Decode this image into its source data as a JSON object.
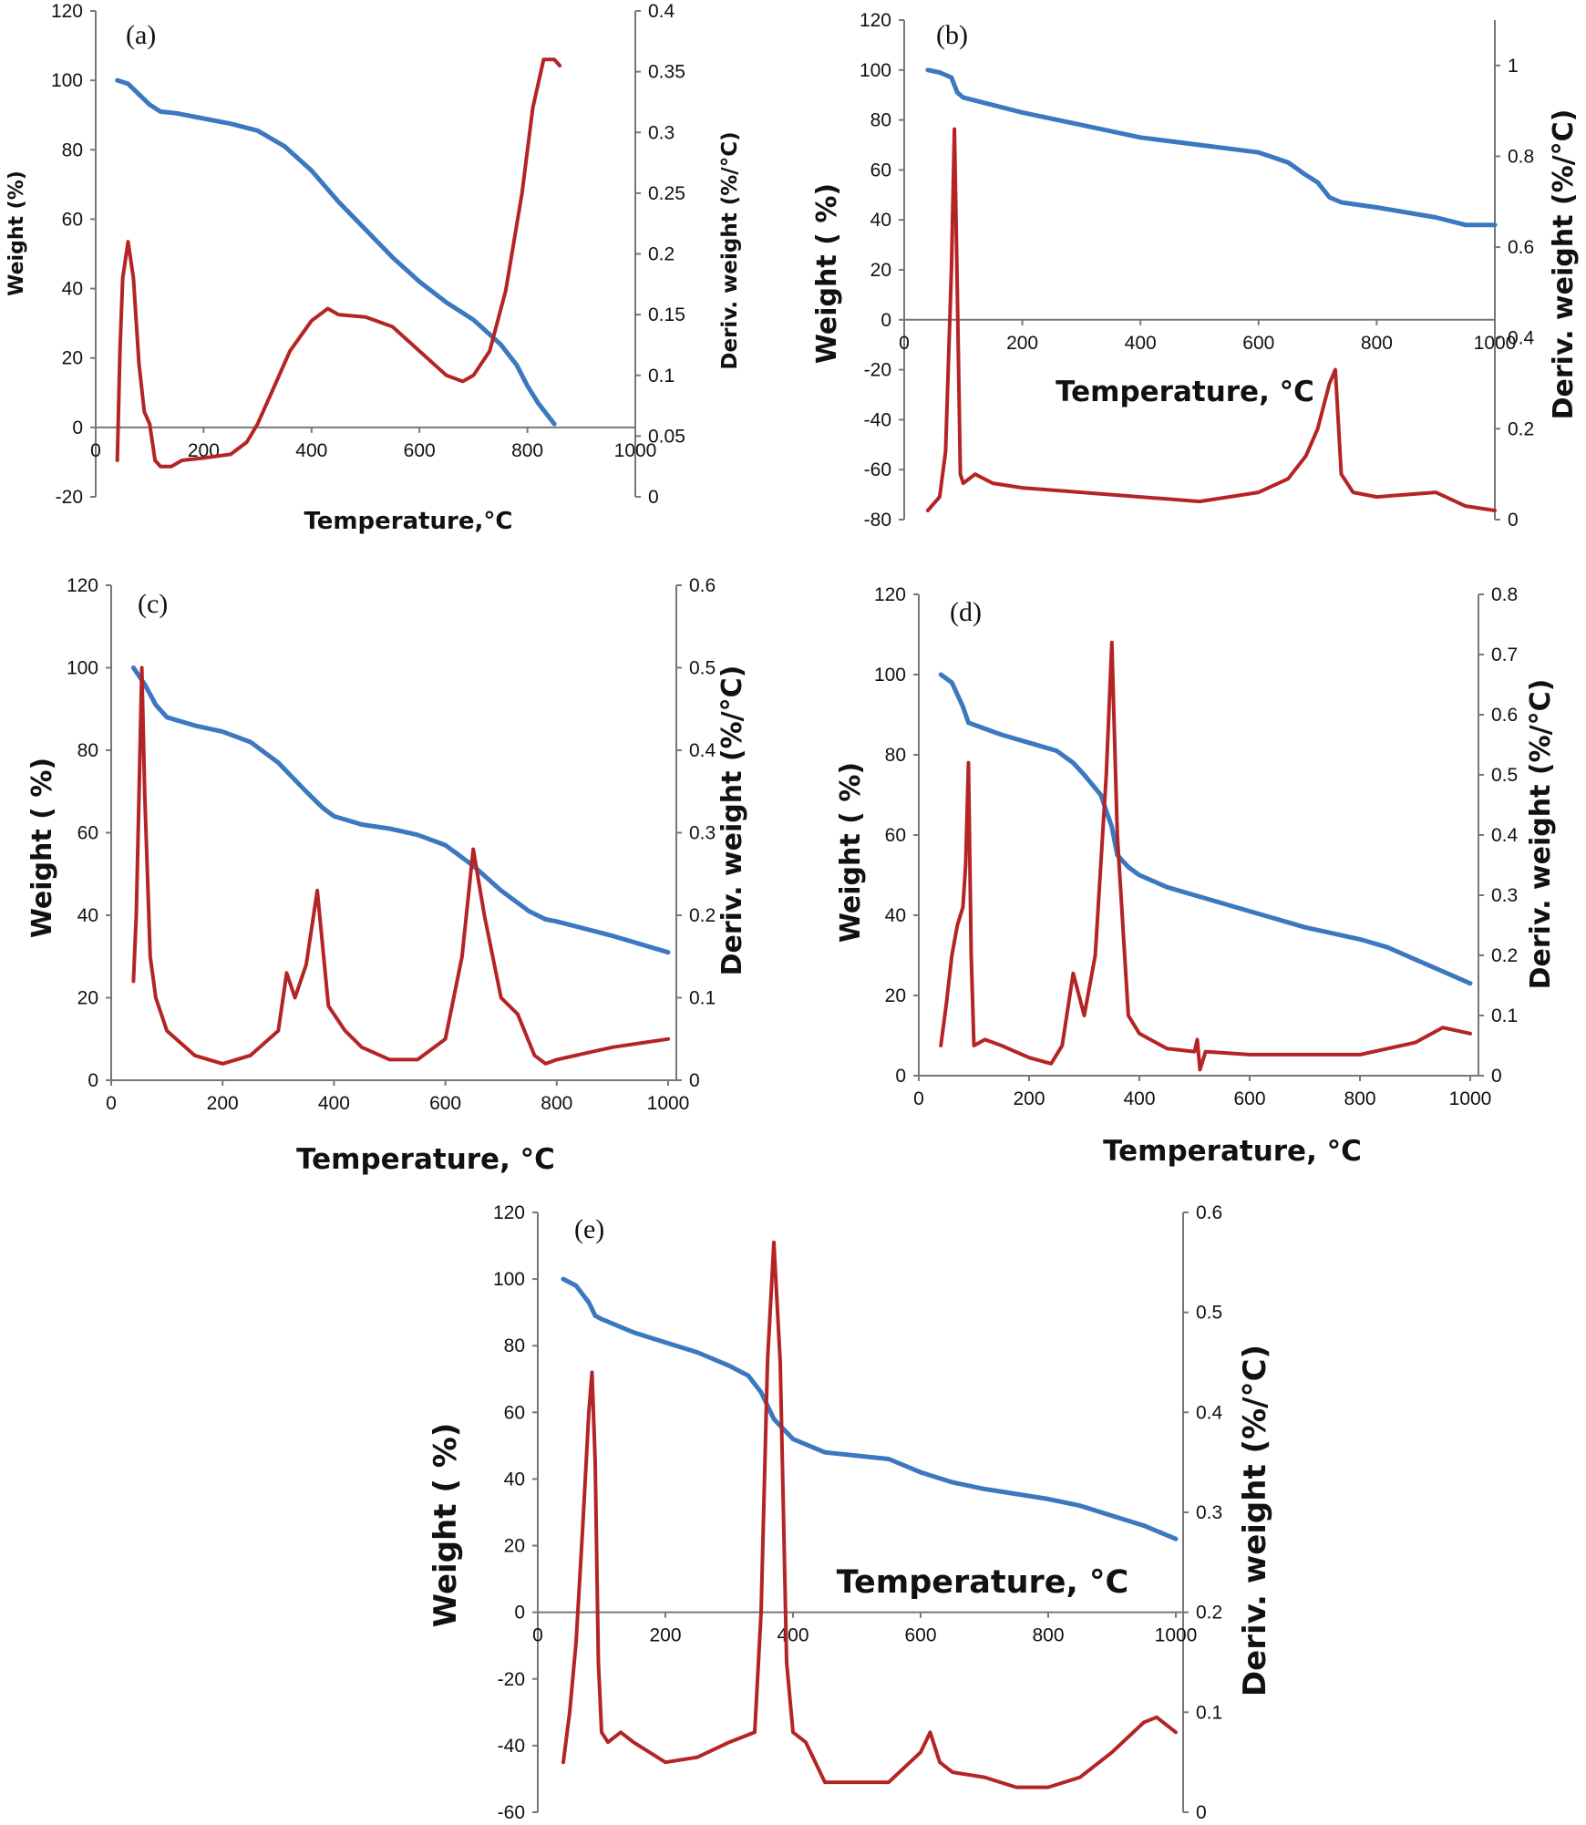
{
  "colors": {
    "weight": "#3b78c0",
    "deriv": "#b52424",
    "axis": "#777777"
  },
  "chart_data": [
    {
      "type": "line",
      "panel_label": "(a)",
      "xlabel": "Temperature,°C",
      "ylabel": "Weight (%)",
      "y2label": "Deriv. weight (%/°C)",
      "xlim": [
        0,
        1000
      ],
      "ylim": [
        -20,
        120
      ],
      "y2lim": [
        0,
        0.4
      ],
      "xticks": [
        "0",
        "200",
        "400",
        "600",
        "800",
        "1000"
      ],
      "yticks": [
        "-20",
        "0",
        "20",
        "40",
        "60",
        "80",
        "100",
        "120"
      ],
      "y2ticks": [
        "0",
        "0.05",
        "0.1",
        "0.15",
        "0.2",
        "0.25",
        "0.3",
        "0.35",
        "0.4"
      ],
      "series": [
        {
          "axis": "left",
          "x": [
            40,
            60,
            80,
            100,
            120,
            150,
            200,
            250,
            300,
            350,
            400,
            450,
            500,
            550,
            600,
            650,
            700,
            750,
            780,
            800,
            820,
            850
          ],
          "y": [
            100,
            99,
            96,
            93,
            91,
            90.5,
            89,
            87.5,
            85.5,
            81,
            74,
            65,
            57,
            49,
            42,
            36,
            31,
            24,
            18,
            12,
            7,
            1
          ]
        },
        {
          "axis": "right",
          "x": [
            40,
            45,
            50,
            60,
            70,
            80,
            90,
            100,
            110,
            120,
            140,
            160,
            200,
            250,
            280,
            300,
            330,
            360,
            400,
            430,
            450,
            500,
            550,
            600,
            650,
            680,
            700,
            730,
            760,
            790,
            810,
            830,
            850,
            860
          ],
          "y": [
            0.03,
            0.12,
            0.18,
            0.21,
            0.18,
            0.11,
            0.07,
            0.06,
            0.03,
            0.025,
            0.025,
            0.03,
            0.032,
            0.035,
            0.045,
            0.06,
            0.09,
            0.12,
            0.145,
            0.155,
            0.15,
            0.148,
            0.14,
            0.12,
            0.1,
            0.095,
            0.1,
            0.12,
            0.17,
            0.25,
            0.32,
            0.36,
            0.36,
            0.355
          ]
        }
      ]
    },
    {
      "type": "line",
      "panel_label": "(b)",
      "xlabel": "Temperature, °C",
      "ylabel": "Weight ( %)",
      "y2label": "Deriv. weight (%/°C)",
      "xlim": [
        0,
        1000
      ],
      "ylim": [
        -80,
        120
      ],
      "y2lim": [
        0,
        1.1
      ],
      "xticks": [
        "0",
        "200",
        "400",
        "600",
        "800",
        "1000"
      ],
      "yticks": [
        "-80",
        "-60",
        "-40",
        "-20",
        "0",
        "20",
        "40",
        "60",
        "80",
        "100",
        "120"
      ],
      "y2ticks": [
        "0",
        "0.2",
        "0.4",
        "0.6",
        "0.8",
        "1"
      ],
      "series": [
        {
          "axis": "left",
          "x": [
            40,
            60,
            80,
            90,
            100,
            150,
            200,
            300,
            400,
            500,
            600,
            650,
            680,
            700,
            720,
            740,
            800,
            900,
            950,
            1000
          ],
          "y": [
            100,
            99,
            97,
            91,
            89,
            86,
            83,
            78,
            73,
            70,
            67,
            63,
            58,
            55,
            49,
            47,
            45,
            41,
            38,
            38
          ]
        },
        {
          "axis": "right",
          "x": [
            40,
            60,
            70,
            80,
            85,
            90,
            95,
            100,
            120,
            150,
            200,
            300,
            400,
            500,
            600,
            650,
            680,
            700,
            720,
            730,
            740,
            760,
            800,
            900,
            950,
            1000
          ],
          "y": [
            0.02,
            0.05,
            0.15,
            0.55,
            0.86,
            0.5,
            0.1,
            0.08,
            0.1,
            0.08,
            0.07,
            0.06,
            0.05,
            0.04,
            0.06,
            0.09,
            0.14,
            0.2,
            0.3,
            0.33,
            0.1,
            0.06,
            0.05,
            0.06,
            0.03,
            0.02
          ]
        }
      ]
    },
    {
      "type": "line",
      "panel_label": "(c)",
      "xlabel": "Temperature, °C",
      "ylabel": "Weight ( %)",
      "y2label": "Deriv. weight (%/°C)",
      "xlim": [
        0,
        1000
      ],
      "ylim": [
        0,
        120
      ],
      "y2lim": [
        0,
        0.6
      ],
      "xticks": [
        "0",
        "200",
        "400",
        "600",
        "800",
        "1000"
      ],
      "yticks": [
        "0",
        "20",
        "40",
        "60",
        "80",
        "100",
        "120"
      ],
      "y2ticks": [
        "0",
        "0.1",
        "0.2",
        "0.3",
        "0.4",
        "0.5",
        "0.6"
      ],
      "series": [
        {
          "axis": "left",
          "x": [
            40,
            60,
            80,
            100,
            150,
            200,
            250,
            300,
            350,
            380,
            400,
            450,
            500,
            550,
            600,
            650,
            700,
            750,
            780,
            800,
            900,
            1000
          ],
          "y": [
            100,
            96,
            91,
            88,
            86,
            84.5,
            82,
            77,
            70,
            66,
            64,
            62,
            61,
            59.5,
            57,
            52,
            46,
            41,
            39,
            38.5,
            35,
            31
          ]
        },
        {
          "axis": "right",
          "x": [
            40,
            45,
            50,
            55,
            60,
            70,
            80,
            100,
            150,
            200,
            250,
            300,
            315,
            330,
            350,
            370,
            390,
            420,
            450,
            500,
            550,
            600,
            630,
            650,
            670,
            700,
            730,
            760,
            780,
            800,
            900,
            1000
          ],
          "y": [
            0.12,
            0.2,
            0.35,
            0.5,
            0.35,
            0.15,
            0.1,
            0.06,
            0.03,
            0.02,
            0.03,
            0.06,
            0.13,
            0.1,
            0.14,
            0.23,
            0.09,
            0.06,
            0.04,
            0.025,
            0.025,
            0.05,
            0.15,
            0.28,
            0.2,
            0.1,
            0.08,
            0.03,
            0.02,
            0.025,
            0.04,
            0.05
          ]
        }
      ]
    },
    {
      "type": "line",
      "panel_label": "(d)",
      "xlabel": "Temperature, °C",
      "ylabel": "Weight ( %)",
      "y2label": "Deriv. weight (%/°C)",
      "xlim": [
        0,
        1000
      ],
      "ylim": [
        0,
        120
      ],
      "y2lim": [
        0,
        0.8
      ],
      "xticks": [
        "0",
        "200",
        "400",
        "600",
        "800",
        "1000"
      ],
      "yticks": [
        "0",
        "20",
        "40",
        "60",
        "80",
        "100",
        "120"
      ],
      "y2ticks": [
        "0",
        "0.1",
        "0.2",
        "0.3",
        "0.4",
        "0.5",
        "0.6",
        "0.7",
        "0.8"
      ],
      "series": [
        {
          "axis": "left",
          "x": [
            40,
            60,
            80,
            90,
            100,
            150,
            200,
            250,
            280,
            300,
            330,
            350,
            360,
            380,
            400,
            450,
            500,
            600,
            700,
            800,
            850,
            900,
            950,
            1000
          ],
          "y": [
            100,
            98,
            92,
            88,
            87.5,
            85,
            83,
            81,
            78,
            75,
            70,
            62,
            55,
            52,
            50,
            47,
            45,
            41,
            37,
            34,
            32,
            29,
            26,
            23
          ]
        },
        {
          "axis": "right",
          "x": [
            40,
            50,
            60,
            70,
            80,
            85,
            90,
            95,
            100,
            120,
            150,
            200,
            240,
            260,
            280,
            300,
            320,
            340,
            350,
            360,
            380,
            400,
            450,
            500,
            505,
            510,
            520,
            600,
            700,
            800,
            900,
            950,
            1000
          ],
          "y": [
            0.05,
            0.12,
            0.2,
            0.25,
            0.28,
            0.35,
            0.52,
            0.2,
            0.05,
            0.06,
            0.05,
            0.03,
            0.02,
            0.05,
            0.17,
            0.1,
            0.2,
            0.5,
            0.72,
            0.4,
            0.1,
            0.07,
            0.045,
            0.04,
            0.06,
            0.01,
            0.04,
            0.035,
            0.035,
            0.035,
            0.055,
            0.08,
            0.07
          ]
        }
      ]
    },
    {
      "type": "line",
      "panel_label": "(e)",
      "xlabel": "Temperature, °C",
      "ylabel": "Weight ( %)",
      "y2label": "Deriv. weight (%/°C)",
      "xlim": [
        0,
        1000
      ],
      "ylim": [
        -60,
        120
      ],
      "y2lim": [
        0,
        0.6
      ],
      "xticks": [
        "0",
        "200",
        "400",
        "600",
        "800",
        "1000"
      ],
      "yticks": [
        "-60",
        "-40",
        "-20",
        "0",
        "20",
        "40",
        "60",
        "80",
        "100",
        "120"
      ],
      "y2ticks": [
        "0",
        "0.1",
        "0.2",
        "0.3",
        "0.4",
        "0.5",
        "0.6"
      ],
      "series": [
        {
          "axis": "left",
          "x": [
            40,
            60,
            80,
            90,
            100,
            150,
            200,
            250,
            300,
            330,
            350,
            370,
            400,
            450,
            500,
            550,
            600,
            650,
            700,
            800,
            850,
            900,
            950,
            1000
          ],
          "y": [
            100,
            98,
            93,
            89,
            88,
            84,
            81,
            78,
            74,
            71,
            66,
            58,
            52,
            48,
            47,
            46,
            42,
            39,
            37,
            34,
            32,
            29,
            26,
            22
          ]
        },
        {
          "axis": "right",
          "x": [
            40,
            50,
            60,
            70,
            80,
            85,
            90,
            95,
            100,
            110,
            130,
            150,
            200,
            250,
            300,
            340,
            350,
            360,
            370,
            380,
            390,
            400,
            420,
            450,
            500,
            550,
            600,
            615,
            630,
            650,
            700,
            750,
            800,
            850,
            900,
            950,
            970,
            1000
          ],
          "y": [
            0.05,
            0.1,
            0.17,
            0.28,
            0.4,
            0.44,
            0.35,
            0.15,
            0.08,
            0.07,
            0.08,
            0.07,
            0.05,
            0.055,
            0.07,
            0.08,
            0.2,
            0.45,
            0.57,
            0.45,
            0.15,
            0.08,
            0.07,
            0.03,
            0.03,
            0.03,
            0.06,
            0.08,
            0.05,
            0.04,
            0.035,
            0.025,
            0.025,
            0.035,
            0.06,
            0.09,
            0.095,
            0.08
          ]
        }
      ]
    }
  ]
}
